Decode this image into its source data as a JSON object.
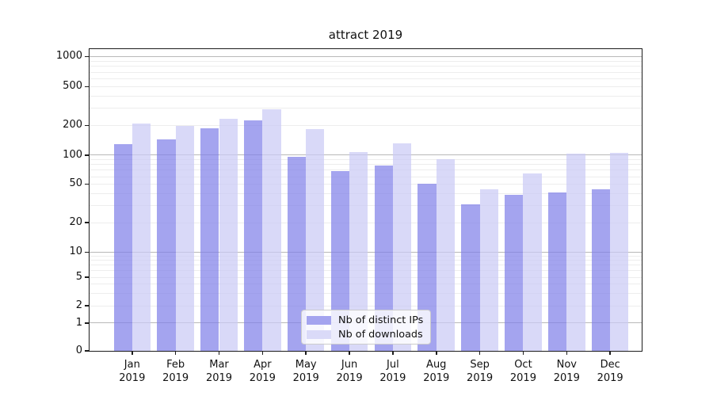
{
  "title": "attract 2019",
  "chart_data": {
    "type": "bar",
    "title": "attract 2019",
    "categories": [
      "Jan",
      "Feb",
      "Mar",
      "Apr",
      "May",
      "Jun",
      "Jul",
      "Aug",
      "Sep",
      "Oct",
      "Nov",
      "Dec"
    ],
    "x_tick_year": "2019",
    "series": [
      {
        "name": "Nb of distinct IPs",
        "color": "#a4a4ef",
        "values": [
          130,
          145,
          188,
          225,
          97,
          69,
          78,
          51,
          31,
          39,
          41,
          44
        ]
      },
      {
        "name": "Nb of downloads",
        "color": "#dadaf8",
        "values": [
          209,
          198,
          234,
          290,
          185,
          108,
          133,
          91,
          44,
          65,
          103,
          106
        ]
      }
    ],
    "yscale": "symlog",
    "y_ticks": [
      0,
      1,
      2,
      5,
      10,
      20,
      50,
      100,
      200,
      500,
      1000
    ],
    "ylim": [
      0,
      1200
    ],
    "grid": true,
    "legend_position": "lower center"
  }
}
